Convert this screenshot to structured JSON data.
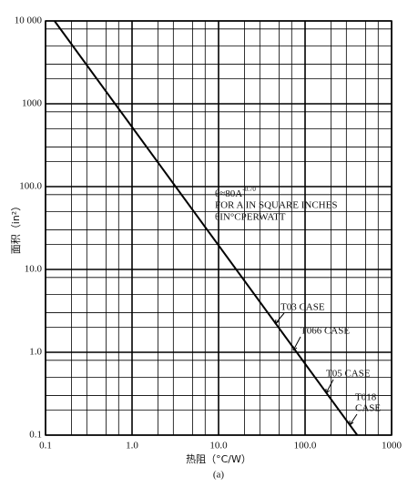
{
  "chart_data": {
    "type": "line",
    "x_label": "热阻（°C/W）",
    "y_label": "面积（in²）",
    "caption": "(a)",
    "x": [
      0.127,
      401
    ],
    "values": [
      10000,
      0.1
    ],
    "color": "#000000",
    "log_x": true,
    "log_y": true,
    "grid": true,
    "xlim": [
      0.1,
      1000
    ],
    "ylim": [
      0.1,
      10000
    ],
    "xticks": [
      0.1,
      {
        "value": 1,
        "label": "1.0"
      },
      {
        "value": 10,
        "label": "10.0"
      },
      {
        "value": 100,
        "label": "100.0"
      },
      1000
    ],
    "yticks": [
      0.1,
      {
        "value": 1,
        "label": "1.0"
      },
      {
        "value": 10,
        "label": "10.0"
      },
      {
        "value": 100,
        "label": "100.0"
      },
      1000,
      {
        "value": 10000,
        "label": "10 000"
      }
    ],
    "formula": {
      "text": "θ≈80A",
      "sup": "-0.70"
    },
    "formula_notes": [
      "FOR A IN SQUARE INCHES",
      "θIN°CPERWATT"
    ],
    "case_labels": [
      [
        "T03 CASE"
      ],
      [
        "T066 CASE"
      ],
      [
        "T05 CASE"
      ],
      [
        "T018",
        "CASE"
      ]
    ]
  }
}
